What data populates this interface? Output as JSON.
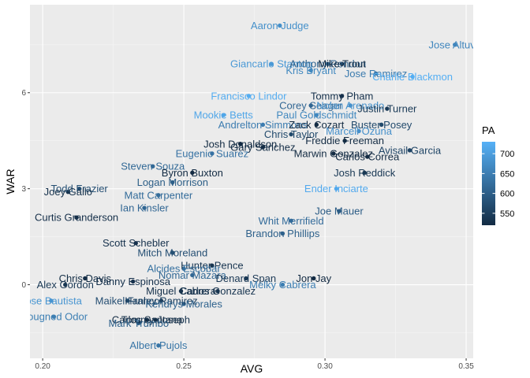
{
  "chart_data": {
    "type": "scatter",
    "title": "",
    "xlabel": "AVG",
    "ylabel": "WAR",
    "xlim": [
      0.1955,
      0.3525
    ],
    "ylim": [
      -2.3,
      8.75
    ],
    "x_ticks": [
      0.2,
      0.25,
      0.3,
      0.35
    ],
    "x_tick_labels": [
      "0.20",
      "0.25",
      "0.30",
      "0.35"
    ],
    "y_ticks": [
      0,
      3,
      6
    ],
    "y_tick_labels": [
      "0",
      "3",
      "6"
    ],
    "grid": true,
    "color_scale": {
      "variable": "PA",
      "min": 520,
      "max": 730,
      "low_color": "#132B43",
      "high_color": "#56B1F7",
      "breaks": [
        550,
        600,
        650,
        700
      ],
      "break_labels": [
        "550",
        "600",
        "650",
        "700"
      ]
    },
    "legend_position": "right",
    "points": [
      {
        "name": "Aaron Judge",
        "avg": 0.284,
        "war": 8.1,
        "pa": 678
      },
      {
        "name": "Jose Altuve",
        "avg": 0.346,
        "war": 7.5,
        "pa": 662
      },
      {
        "name": "Giancarlo Stanton",
        "avg": 0.281,
        "war": 6.9,
        "pa": 692
      },
      {
        "name": "Anthony Rendon",
        "avg": 0.301,
        "war": 6.9,
        "pa": 605
      },
      {
        "name": "Mike Trout",
        "avg": 0.306,
        "war": 6.9,
        "pa": 507
      },
      {
        "name": "Kris Bryant",
        "avg": 0.295,
        "war": 6.7,
        "pa": 665
      },
      {
        "name": "Jose Ramirez",
        "avg": 0.318,
        "war": 6.6,
        "pa": 645
      },
      {
        "name": "Charlie Blackmon",
        "avg": 0.331,
        "war": 6.5,
        "pa": 725
      },
      {
        "name": "Francisco Lindor",
        "avg": 0.273,
        "war": 5.9,
        "pa": 723
      },
      {
        "name": "Tommy Pham",
        "avg": 0.306,
        "war": 5.9,
        "pa": 530
      },
      {
        "name": "Corey Seager",
        "avg": 0.295,
        "war": 5.6,
        "pa": 613
      },
      {
        "name": "Nolan Arenado",
        "avg": 0.309,
        "war": 5.6,
        "pa": 680
      },
      {
        "name": "Justin Turner",
        "avg": 0.322,
        "war": 5.5,
        "pa": 543
      },
      {
        "name": "Mookie Betts",
        "avg": 0.264,
        "war": 5.3,
        "pa": 712
      },
      {
        "name": "Paul Goldschmidt",
        "avg": 0.297,
        "war": 5.3,
        "pa": 665
      },
      {
        "name": "Buster Posey",
        "avg": 0.32,
        "war": 5.0,
        "pa": 568
      },
      {
        "name": "Andrelton Simmons",
        "avg": 0.278,
        "war": 5.0,
        "pa": 647
      },
      {
        "name": "Zack Cozart",
        "avg": 0.297,
        "war": 5.0,
        "pa": 507
      },
      {
        "name": "Marcell Ozuna",
        "avg": 0.312,
        "war": 4.8,
        "pa": 679
      },
      {
        "name": "Chris Taylor",
        "avg": 0.288,
        "war": 4.7,
        "pa": 568
      },
      {
        "name": "Freddie Freeman",
        "avg": 0.307,
        "war": 4.5,
        "pa": 514
      },
      {
        "name": "Josh Donaldson",
        "avg": 0.27,
        "war": 4.4,
        "pa": 496
      },
      {
        "name": "Gary Sanchez",
        "avg": 0.278,
        "war": 4.3,
        "pa": 525
      },
      {
        "name": "Avisail Garcia",
        "avg": 0.33,
        "war": 4.2,
        "pa": 561
      },
      {
        "name": "Eugenio Suarez",
        "avg": 0.26,
        "war": 4.1,
        "pa": 632
      },
      {
        "name": "Marwin Gonzalez",
        "avg": 0.303,
        "war": 4.1,
        "pa": 515
      },
      {
        "name": "Carlos Correa",
        "avg": 0.315,
        "war": 4.0,
        "pa": 481
      },
      {
        "name": "Steven Souza",
        "avg": 0.239,
        "war": 3.7,
        "pa": 617
      },
      {
        "name": "Byron Buxton",
        "avg": 0.253,
        "war": 3.5,
        "pa": 511
      },
      {
        "name": "Josh Reddick",
        "avg": 0.314,
        "war": 3.5,
        "pa": 540
      },
      {
        "name": "Logan Morrison",
        "avg": 0.246,
        "war": 3.2,
        "pa": 601
      },
      {
        "name": "Ender Inciarte",
        "avg": 0.304,
        "war": 3.0,
        "pa": 718
      },
      {
        "name": "Todd Frazier",
        "avg": 0.213,
        "war": 3.0,
        "pa": 576
      },
      {
        "name": "Joey Gallo",
        "avg": 0.209,
        "war": 2.9,
        "pa": 532
      },
      {
        "name": "Matt Carpenter",
        "avg": 0.241,
        "war": 2.8,
        "pa": 622
      },
      {
        "name": "Joe Mauer",
        "avg": 0.305,
        "war": 2.3,
        "pa": 597
      },
      {
        "name": "Ian Kinsler",
        "avg": 0.236,
        "war": 2.4,
        "pa": 613
      },
      {
        "name": "Curtis Granderson",
        "avg": 0.212,
        "war": 2.1,
        "pa": 527
      },
      {
        "name": "Whit Merrifield",
        "avg": 0.288,
        "war": 2.0,
        "pa": 621
      },
      {
        "name": "Brandon Phillips",
        "avg": 0.285,
        "war": 1.6,
        "pa": 604
      },
      {
        "name": "Scott Schebler",
        "avg": 0.233,
        "war": 1.3,
        "pa": 530
      },
      {
        "name": "Mitch Moreland",
        "avg": 0.246,
        "war": 1.0,
        "pa": 576
      },
      {
        "name": "Hunter Pence",
        "avg": 0.26,
        "war": 0.6,
        "pa": 535
      },
      {
        "name": "Alcides Escobar",
        "avg": 0.25,
        "war": 0.5,
        "pa": 629
      },
      {
        "name": "Nomar Mazara",
        "avg": 0.253,
        "war": 0.3,
        "pa": 616
      },
      {
        "name": "Chris Davis",
        "avg": 0.215,
        "war": 0.2,
        "pa": 524
      },
      {
        "name": "Jon Jay",
        "avg": 0.296,
        "war": 0.2,
        "pa": 485
      },
      {
        "name": "Alex Gordon",
        "avg": 0.208,
        "war": 0.0,
        "pa": 540
      },
      {
        "name": "Denard Span",
        "avg": 0.272,
        "war": 0.2,
        "pa": 541
      },
      {
        "name": "Danny Espinosa",
        "avg": 0.232,
        "war": 0.1,
        "pa": 530
      },
      {
        "name": "Melky Cabrera",
        "avg": 0.285,
        "war": 0.0,
        "pa": 650
      },
      {
        "name": "Miguel Cabrera",
        "avg": 0.249,
        "war": -0.2,
        "pa": 529
      },
      {
        "name": "Carlos Gonzalez",
        "avg": 0.262,
        "war": -0.2,
        "pa": 534
      },
      {
        "name": "Jose Bautista",
        "avg": 0.203,
        "war": -0.5,
        "pa": 686
      },
      {
        "name": "Maikel Franco",
        "avg": 0.23,
        "war": -0.5,
        "pa": 575
      },
      {
        "name": "Hanley Ramirez",
        "avg": 0.242,
        "war": -0.5,
        "pa": 553
      },
      {
        "name": "Kendrys Morales",
        "avg": 0.25,
        "war": -0.6,
        "pa": 608
      },
      {
        "name": "Rougned Odor",
        "avg": 0.204,
        "war": -1.0,
        "pa": 651
      },
      {
        "name": "Carlos Santana",
        "avg": 0.237,
        "war": -1.1,
        "pa": 498
      },
      {
        "name": "Tommy Joseph",
        "avg": 0.24,
        "war": -1.1,
        "pa": 533
      },
      {
        "name": "Mark Trumbo",
        "avg": 0.234,
        "war": -1.2,
        "pa": 603
      },
      {
        "name": "Albert Pujols",
        "avg": 0.241,
        "war": -1.9,
        "pa": 636
      }
    ]
  }
}
